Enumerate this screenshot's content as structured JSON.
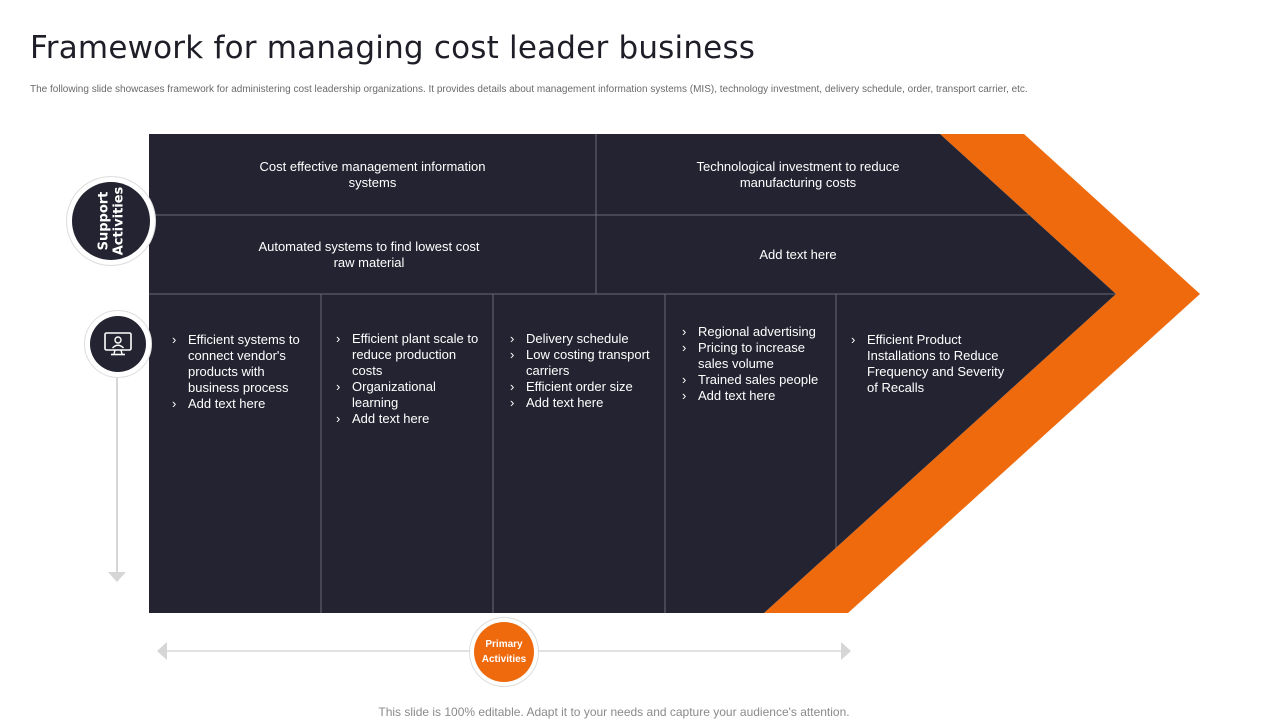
{
  "title": "Framework for managing cost leader business",
  "subtitle": "The following slide showcases framework for administering cost leadership organizations. It provides details about management information systems (MIS), technology investment, delivery schedule, order, transport carrier, etc.",
  "support_label_line1": "Support",
  "support_label_line2": "Activities",
  "primary_label_line1": "Primary",
  "primary_label_line2": "Activities",
  "support_cells": [
    {
      "line1": "Cost effective  management  information",
      "line2": "systems"
    },
    {
      "line1": "Technological  investment  to reduce",
      "line2": "manufacturing  costs"
    },
    {
      "line1": "Automated systems to find lowest cost",
      "line2": "raw material"
    },
    {
      "line1": "Add text here",
      "line2": ""
    }
  ],
  "primary_columns": [
    {
      "items": [
        "Efficient systems to connect vendor's products with business process",
        "Add text here"
      ]
    },
    {
      "items": [
        "Efficient plant scale to reduce production costs",
        "Organizational learning",
        "Add text here"
      ]
    },
    {
      "items": [
        "Delivery  schedule",
        "Low costing transport carriers",
        "Efficient order size",
        "Add text here"
      ]
    },
    {
      "items": [
        "Regional advertising",
        "Pricing to increase sales volume",
        "Trained  sales people",
        "Add text here"
      ]
    },
    {
      "items": [
        "Efficient Product Installations to Reduce Frequency and Severity  of Recalls"
      ]
    }
  ],
  "footer": "This slide is 100% editable. Adapt it to your needs and capture your audience's attention.",
  "icons": {
    "monitor": "monitor-user-icon"
  },
  "colors": {
    "dark": "#232331",
    "accent": "#ef6a0c",
    "divider": "#6b6b78",
    "arrow": "#d6d6d6"
  }
}
